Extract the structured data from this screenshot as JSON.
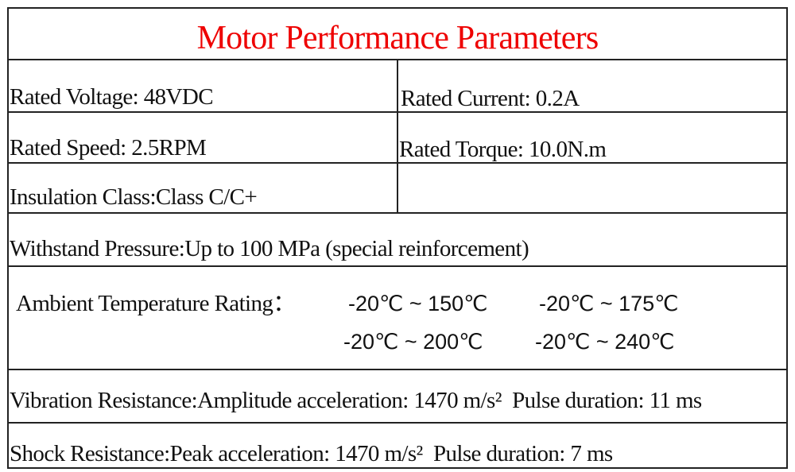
{
  "title": "Motor Performance Parameters",
  "rows": [
    [
      "Rated Voltage: 48VDC",
      "Rated Current: 0.2A"
    ],
    [
      "Rated Speed: 2.5RPM",
      "Rated Torque: 10.0N.m"
    ],
    [
      "Insulation Class:Class C/C+"
    ]
  ],
  "withstand": "Withstand Pressure:Up to 100 MPa (special reinforcement)",
  "temperature": {
    "label": "Ambient Temperature Rating：",
    "values": [
      "-20℃ ~ 150℃",
      "-20℃ ~ 175℃",
      "-20℃ ~ 200℃",
      "-20℃ ~ 240℃"
    ]
  },
  "vibration": "Vibration Resistance:Amplitude acceleration: 1470 m/s²  Pulse duration: 11 ms",
  "shock": "Shock Resistance:Peak acceleration: 1470 m/s²  Pulse duration: 7 ms"
}
